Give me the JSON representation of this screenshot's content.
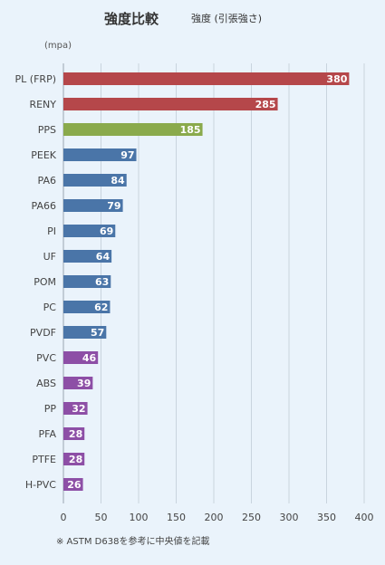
{
  "header": {
    "title": "強度比較",
    "subtitle": "強度 (引張強さ)"
  },
  "footnote": "※ ASTM D638を参考に中央値を記載",
  "chart_data": {
    "type": "bar",
    "orientation": "horizontal",
    "unit_label": "(mpa)",
    "categories": [
      "PL (FRP)",
      "RENY",
      "PPS",
      "PEEK",
      "PA6",
      "PA66",
      "PI",
      "UF",
      "POM",
      "PC",
      "PVDF",
      "PVC",
      "ABS",
      "PP",
      "PFA",
      "PTFE",
      "H-PVC"
    ],
    "values": [
      380,
      285,
      185,
      97,
      84,
      79,
      69,
      64,
      63,
      62,
      57,
      46,
      39,
      32,
      28,
      28,
      26
    ],
    "bar_colors": [
      "#b5474a",
      "#b5474a",
      "#8aaa4c",
      "#4a75a8",
      "#4a75a8",
      "#4a75a8",
      "#4a75a8",
      "#4a75a8",
      "#4a75a8",
      "#4a75a8",
      "#4a75a8",
      "#8d4fa6",
      "#8d4fa6",
      "#8d4fa6",
      "#8d4fa6",
      "#8d4fa6",
      "#8d4fa6"
    ],
    "xlim": [
      0,
      400
    ],
    "xticks": [
      0,
      50,
      100,
      150,
      200,
      250,
      300,
      350,
      400
    ],
    "grid": true,
    "data_labels": true
  }
}
